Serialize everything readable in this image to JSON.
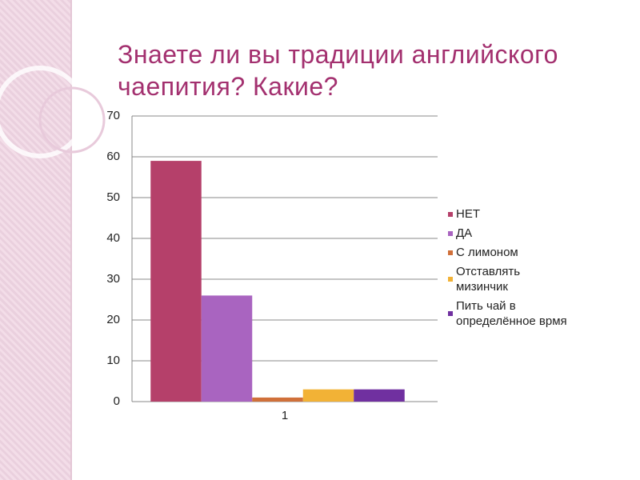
{
  "chart_data": {
    "type": "bar",
    "title": "Знаете ли вы традиции английского чаепития? Какие?",
    "categories": [
      "1"
    ],
    "series": [
      {
        "name": "НЕТ",
        "color": "#b5406a",
        "values": [
          59
        ]
      },
      {
        "name": "ДА",
        "color": "#a964c0",
        "values": [
          26
        ]
      },
      {
        "name": "С лимоном",
        "color": "#d0703a",
        "values": [
          1
        ]
      },
      {
        "name": "Отставлять мизинчик",
        "color": "#f2b236",
        "values": [
          3
        ]
      },
      {
        "name": "Пить чай в определённое врмя",
        "color": "#7030a0",
        "values": [
          3
        ]
      }
    ],
    "ylim": [
      0,
      70
    ],
    "yticks": [
      0,
      10,
      20,
      30,
      40,
      50,
      60,
      70
    ],
    "grid": true,
    "legend": "right"
  }
}
